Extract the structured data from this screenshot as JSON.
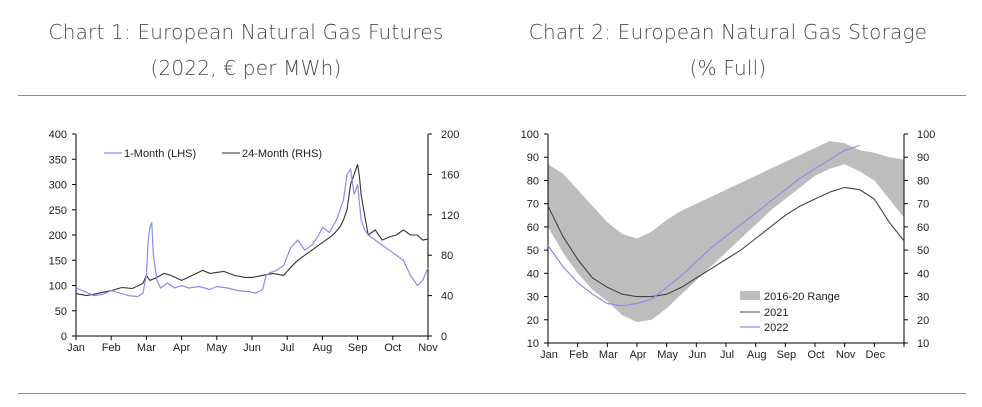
{
  "chart_data": [
    {
      "type": "line",
      "title": "Chart 1: European Natural Gas Futures",
      "subtitle": "(2022, € per MWh)",
      "x_ticks": [
        "Jan",
        "Feb",
        "Mar",
        "Apr",
        "May",
        "Jun",
        "Jul",
        "Aug",
        "Sep",
        "Oct",
        "Nov"
      ],
      "ylim_left": [
        0,
        400
      ],
      "yticks_left": [
        0,
        50,
        100,
        150,
        200,
        250,
        300,
        350,
        400
      ],
      "ylim_right": [
        0,
        200
      ],
      "yticks_right": [
        0,
        40,
        80,
        120,
        160,
        200
      ],
      "legend_position": "top-left",
      "colors": {
        "one_month": "#8c8cea",
        "two_four_month": "#333333"
      },
      "series": [
        {
          "name": "1-Month (LHS)",
          "axis": "left",
          "x": [
            0,
            0.25,
            0.5,
            0.75,
            1.0,
            1.25,
            1.5,
            1.75,
            1.9,
            2.0,
            2.05,
            2.1,
            2.15,
            2.2,
            2.3,
            2.4,
            2.5,
            2.6,
            2.8,
            3.0,
            3.2,
            3.5,
            3.8,
            4.0,
            4.3,
            4.6,
            4.9,
            5.1,
            5.3,
            5.4,
            5.5,
            5.7,
            5.9,
            6.1,
            6.3,
            6.5,
            6.7,
            6.9,
            7.0,
            7.2,
            7.4,
            7.6,
            7.7,
            7.8,
            7.9,
            8.0,
            8.1,
            8.2,
            8.3,
            8.5,
            8.7,
            8.9,
            9.1,
            9.3,
            9.5,
            9.7,
            9.85,
            10.0
          ],
          "values": [
            95,
            88,
            80,
            82,
            90,
            85,
            80,
            78,
            85,
            120,
            190,
            215,
            225,
            160,
            110,
            95,
            100,
            105,
            95,
            100,
            95,
            98,
            92,
            98,
            95,
            90,
            88,
            85,
            92,
            120,
            125,
            130,
            140,
            175,
            190,
            170,
            180,
            200,
            215,
            205,
            230,
            270,
            320,
            330,
            280,
            300,
            230,
            210,
            200,
            190,
            180,
            170,
            160,
            150,
            120,
            100,
            110,
            135
          ]
        },
        {
          "name": "24-Month (RHS)",
          "axis": "right",
          "x": [
            0,
            0.3,
            0.6,
            1.0,
            1.3,
            1.6,
            1.9,
            2.0,
            2.1,
            2.3,
            2.5,
            2.7,
            3.0,
            3.3,
            3.6,
            3.8,
            4.0,
            4.2,
            4.5,
            4.8,
            5.0,
            5.3,
            5.6,
            5.9,
            6.1,
            6.3,
            6.5,
            6.7,
            6.9,
            7.1,
            7.3,
            7.5,
            7.6,
            7.7,
            7.8,
            7.9,
            8.0,
            8.05,
            8.1,
            8.2,
            8.3,
            8.5,
            8.7,
            8.9,
            9.1,
            9.3,
            9.5,
            9.7,
            9.85,
            10.0
          ],
          "values": [
            42,
            40,
            42,
            45,
            48,
            47,
            52,
            60,
            55,
            58,
            62,
            60,
            55,
            60,
            65,
            62,
            63,
            64,
            60,
            58,
            58,
            60,
            62,
            60,
            68,
            75,
            80,
            85,
            90,
            95,
            100,
            108,
            115,
            125,
            150,
            160,
            170,
            158,
            140,
            120,
            100,
            105,
            95,
            98,
            100,
            105,
            100,
            100,
            95,
            96
          ]
        }
      ]
    },
    {
      "type": "line",
      "title": "Chart 2: European Natural Gas Storage",
      "subtitle": "(% Full)",
      "x_ticks": [
        "Jan",
        "Feb",
        "Mar",
        "Apr",
        "May",
        "Jun",
        "Jul",
        "Aug",
        "Sep",
        "Oct",
        "Nov",
        "Dec"
      ],
      "ylim": [
        10,
        100
      ],
      "yticks": [
        10,
        20,
        30,
        40,
        50,
        60,
        70,
        80,
        90,
        100
      ],
      "legend_position": "bottom-center",
      "colors": {
        "range": "#bdbdbd",
        "y2021": "#444444",
        "y2022": "#8c8cea"
      },
      "range": {
        "name": "2016-20 Range",
        "x": [
          0,
          0.5,
          1,
          1.5,
          2,
          2.5,
          3,
          3.5,
          4,
          4.5,
          5,
          5.5,
          6,
          6.5,
          7,
          7.5,
          8,
          8.5,
          9,
          9.5,
          10,
          10.5,
          11,
          11.5,
          12
        ],
        "low": [
          60,
          49,
          40,
          33,
          28,
          22,
          19,
          20,
          25,
          31,
          37,
          43,
          49,
          55,
          61,
          67,
          72,
          77,
          82,
          85,
          87,
          84,
          80,
          72,
          64
        ],
        "high": [
          87,
          83,
          76,
          69,
          62,
          57,
          55,
          58,
          63,
          67,
          70,
          73,
          76,
          79,
          82,
          85,
          88,
          91,
          94,
          97,
          96,
          93,
          92,
          90,
          89
        ]
      },
      "series": [
        {
          "name": "2021",
          "x": [
            0,
            0.5,
            1,
            1.5,
            2,
            2.5,
            3,
            3.5,
            4,
            4.5,
            5,
            5.5,
            6,
            6.5,
            7,
            7.5,
            8,
            8.5,
            9,
            9.5,
            10,
            10.5,
            11,
            11.5,
            12
          ],
          "values": [
            69,
            56,
            46,
            38,
            34,
            31,
            30,
            30,
            31,
            34,
            38,
            42,
            46,
            50,
            55,
            60,
            65,
            69,
            72,
            75,
            77,
            76,
            72,
            62,
            54
          ]
        },
        {
          "name": "2022",
          "x": [
            0,
            0.5,
            1,
            1.5,
            2,
            2.5,
            3,
            3.5,
            4,
            4.5,
            5,
            5.5,
            6,
            6.5,
            7,
            7.5,
            8,
            8.5,
            9,
            9.5,
            10,
            10.5
          ],
          "values": [
            52,
            43,
            36,
            31,
            27,
            26,
            27,
            29,
            34,
            39,
            45,
            51,
            56,
            61,
            66,
            71,
            76,
            81,
            85,
            89,
            93,
            95
          ]
        }
      ]
    }
  ]
}
